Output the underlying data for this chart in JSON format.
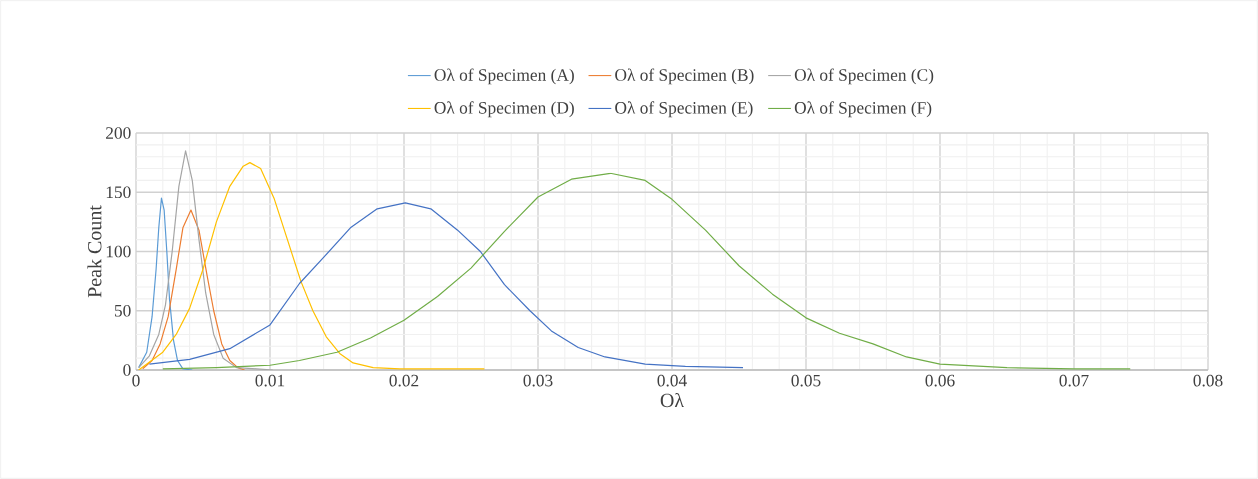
{
  "chart_data": {
    "type": "line",
    "xlabel": "Oλ",
    "ylabel": "Peak Count",
    "xlim": [
      0,
      0.08
    ],
    "ylim": [
      0,
      200
    ],
    "xticks": [
      0,
      0.01,
      0.02,
      0.03,
      0.04,
      0.05,
      0.06,
      0.07,
      0.08
    ],
    "yticks": [
      0,
      50,
      100,
      150,
      200
    ],
    "grid": true,
    "legend": "top",
    "marker": "none",
    "line_style": "solid",
    "series": [
      {
        "name": "Oλ of Specimen (A)",
        "color": "#5b9bd5",
        "x": [
          0.0002,
          0.0008,
          0.0012,
          0.0015,
          0.0017,
          0.0019,
          0.0021,
          0.0023,
          0.0025,
          0.0028,
          0.0031,
          0.0035,
          0.0042
        ],
        "values": [
          2,
          15,
          45,
          85,
          120,
          145,
          135,
          100,
          60,
          25,
          8,
          1,
          0
        ]
      },
      {
        "name": "Oλ of Specimen (B)",
        "color": "#ed7d31",
        "x": [
          0.0005,
          0.0012,
          0.0018,
          0.0024,
          0.003,
          0.0035,
          0.0041,
          0.0047,
          0.0053,
          0.0058,
          0.0064,
          0.007,
          0.0076,
          0.0081
        ],
        "values": [
          1,
          8,
          22,
          45,
          85,
          120,
          135,
          118,
          80,
          50,
          22,
          8,
          2,
          0
        ]
      },
      {
        "name": "Oλ of Specimen (C)",
        "color": "#a5a5a5",
        "x": [
          0.0002,
          0.001,
          0.0017,
          0.0022,
          0.0027,
          0.0032,
          0.0037,
          0.0042,
          0.0047,
          0.0052,
          0.0058,
          0.0065,
          0.0075,
          0.009,
          0.0102
        ],
        "values": [
          2,
          12,
          30,
          55,
          100,
          155,
          185,
          160,
          110,
          65,
          30,
          10,
          2,
          1,
          0
        ]
      },
      {
        "name": "Oλ of Specimen (D)",
        "color": "#ffc000",
        "x": [
          0.0002,
          0.002,
          0.003,
          0.004,
          0.005,
          0.006,
          0.007,
          0.008,
          0.0085,
          0.0093,
          0.0103,
          0.0113,
          0.0123,
          0.0132,
          0.0142,
          0.0152,
          0.0162,
          0.0177,
          0.0197,
          0.026
        ],
        "values": [
          0,
          15,
          30,
          52,
          85,
          125,
          155,
          172,
          175,
          170,
          145,
          110,
          75,
          50,
          28,
          14,
          6,
          2,
          1,
          1
        ]
      },
      {
        "name": "Oλ of Specimen (E)",
        "color": "#4472c4",
        "x": [
          0.001,
          0.004,
          0.007,
          0.01,
          0.0122,
          0.014,
          0.016,
          0.018,
          0.0201,
          0.022,
          0.024,
          0.0257,
          0.0275,
          0.0294,
          0.031,
          0.033,
          0.035,
          0.038,
          0.041,
          0.0453
        ],
        "values": [
          5,
          9,
          18,
          38,
          73,
          95,
          120,
          136,
          141,
          136,
          118,
          100,
          72,
          50,
          33,
          19,
          11,
          5,
          3,
          2
        ]
      },
      {
        "name": "Oλ of Specimen (F)",
        "color": "#70ad47",
        "x": [
          0.002,
          0.006,
          0.01,
          0.0122,
          0.015,
          0.0175,
          0.02,
          0.0225,
          0.025,
          0.0275,
          0.03,
          0.0325,
          0.0354,
          0.038,
          0.04,
          0.0425,
          0.045,
          0.0475,
          0.05,
          0.0525,
          0.055,
          0.0575,
          0.06,
          0.065,
          0.07,
          0.0742
        ],
        "values": [
          1,
          2,
          4,
          8,
          15,
          27,
          42,
          62,
          86,
          117,
          146,
          161,
          166,
          160,
          144,
          118,
          88,
          64,
          44,
          31,
          22,
          11,
          5,
          2,
          1,
          1
        ]
      }
    ]
  }
}
